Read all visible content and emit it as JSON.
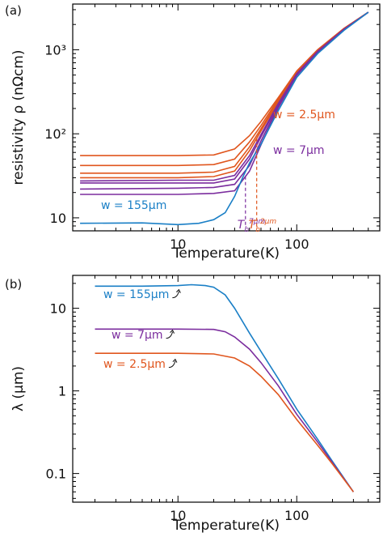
{
  "chart_data": [
    {
      "panel_label": "(a)",
      "type": "line",
      "xscale": "log",
      "yscale": "log",
      "xlim": [
        1.3,
        500
      ],
      "ylim": [
        7,
        3500
      ],
      "xlabel": "Temperature(K)",
      "ylabel": "resistivity ρ (nΩcm)",
      "xticks": [
        {
          "value": 10,
          "label": "10"
        },
        {
          "value": 100,
          "label": "100"
        }
      ],
      "yticks": [
        {
          "value": 10,
          "label": "10"
        },
        {
          "value": 100,
          "label": "10²"
        },
        {
          "value": 1000,
          "label": "10³"
        }
      ],
      "grid": false,
      "colors": {
        "orange": "#e0561e",
        "purple": "#7b2d9e",
        "blue": "#1a7fc6"
      },
      "series": [
        {
          "color": "orange",
          "values": [
            [
              1.5,
              55
            ],
            [
              10,
              55
            ],
            [
              20,
              56
            ],
            [
              30,
              66
            ],
            [
              40,
              95
            ],
            [
              50,
              140
            ],
            [
              70,
              270
            ],
            [
              100,
              560
            ],
            [
              150,
              1000
            ],
            [
              250,
              1800
            ],
            [
              400,
              2800
            ]
          ]
        },
        {
          "color": "orange",
          "values": [
            [
              1.5,
              42
            ],
            [
              10,
              42
            ],
            [
              20,
              43
            ],
            [
              30,
              50
            ],
            [
              40,
              80
            ],
            [
              50,
              125
            ],
            [
              70,
              260
            ],
            [
              100,
              550
            ],
            [
              150,
              990
            ],
            [
              250,
              1790
            ],
            [
              400,
              2800
            ]
          ]
        },
        {
          "color": "orange",
          "values": [
            [
              1.5,
              34
            ],
            [
              10,
              34
            ],
            [
              20,
              35
            ],
            [
              30,
              41
            ],
            [
              40,
              70
            ],
            [
              50,
              115
            ],
            [
              70,
              250
            ],
            [
              100,
              540
            ],
            [
              150,
              980
            ],
            [
              250,
              1780
            ],
            [
              400,
              2800
            ]
          ]
        },
        {
          "color": "orange",
          "values": [
            [
              1.5,
              30
            ],
            [
              10,
              30
            ],
            [
              20,
              31
            ],
            [
              30,
              36
            ],
            [
              40,
              63
            ],
            [
              50,
              108
            ],
            [
              70,
              240
            ],
            [
              100,
              530
            ],
            [
              150,
              970
            ],
            [
              250,
              1770
            ],
            [
              400,
              2800
            ]
          ]
        },
        {
          "color": "purple",
          "values": [
            [
              1.5,
              27.5
            ],
            [
              10,
              28
            ],
            [
              20,
              28
            ],
            [
              30,
              32
            ],
            [
              40,
              55
            ],
            [
              50,
              98
            ],
            [
              70,
              230
            ],
            [
              100,
              520
            ],
            [
              150,
              960
            ],
            [
              250,
              1760
            ],
            [
              400,
              2800
            ]
          ]
        },
        {
          "color": "purple",
          "values": [
            [
              1.5,
              26
            ],
            [
              10,
              26
            ],
            [
              20,
              26
            ],
            [
              30,
              29
            ],
            [
              40,
              50
            ],
            [
              50,
              92
            ],
            [
              70,
              224
            ],
            [
              100,
              515
            ],
            [
              150,
              955
            ],
            [
              250,
              1755
            ],
            [
              400,
              2800
            ]
          ]
        },
        {
          "color": "purple",
          "values": [
            [
              1.5,
              22
            ],
            [
              10,
              22.5
            ],
            [
              20,
              23
            ],
            [
              30,
              25
            ],
            [
              40,
              42
            ],
            [
              50,
              82
            ],
            [
              70,
              215
            ],
            [
              100,
              505
            ],
            [
              150,
              945
            ],
            [
              250,
              1745
            ],
            [
              400,
              2800
            ]
          ]
        },
        {
          "color": "purple",
          "values": [
            [
              1.5,
              19
            ],
            [
              10,
              19
            ],
            [
              20,
              19.5
            ],
            [
              30,
              21
            ],
            [
              40,
              36
            ],
            [
              50,
              74
            ],
            [
              70,
              205
            ],
            [
              100,
              495
            ],
            [
              150,
              935
            ],
            [
              250,
              1735
            ],
            [
              400,
              2800
            ]
          ]
        },
        {
          "color": "blue",
          "values": [
            [
              1.5,
              8.6
            ],
            [
              5,
              8.7
            ],
            [
              10,
              8.3
            ],
            [
              15,
              8.6
            ],
            [
              20,
              9.5
            ],
            [
              25,
              11.5
            ],
            [
              30,
              18
            ],
            [
              35,
              30
            ],
            [
              40,
              45
            ],
            [
              50,
              75
            ],
            [
              70,
              190
            ],
            [
              100,
              470
            ],
            [
              150,
              900
            ],
            [
              250,
              1700
            ],
            [
              400,
              2800
            ]
          ]
        }
      ],
      "annotations": [
        {
          "text": "w = 2.5μm",
          "color": "orange"
        },
        {
          "text": "w = 7μm",
          "color": "purple"
        },
        {
          "text": "w = 155μm",
          "color": "blue"
        }
      ],
      "markers": [
        {
          "x": 37,
          "main": "T",
          "sub": "b",
          "sup": "7μm",
          "color": "purple"
        },
        {
          "x": 46,
          "main": "T",
          "sub": "b",
          "sup": "2μm",
          "color": "orange"
        }
      ]
    },
    {
      "panel_label": "(b)",
      "type": "line",
      "xscale": "log",
      "yscale": "log",
      "xlim": [
        1.3,
        500
      ],
      "ylim": [
        0.045,
        25
      ],
      "xlabel": "Temperature(K)",
      "ylabel": "λ (μm)",
      "xticks": [
        {
          "value": 10,
          "label": "10"
        },
        {
          "value": 100,
          "label": "100"
        }
      ],
      "yticks": [
        {
          "value": 0.1,
          "label": "0.1"
        },
        {
          "value": 1,
          "label": "1"
        },
        {
          "value": 10,
          "label": "10"
        }
      ],
      "grid": false,
      "series": [
        {
          "color": "blue",
          "values": [
            [
              2,
              18.5
            ],
            [
              5,
              18.5
            ],
            [
              10,
              18.8
            ],
            [
              13,
              19.3
            ],
            [
              17,
              18.8
            ],
            [
              20,
              18
            ],
            [
              25,
              14.5
            ],
            [
              30,
              10
            ],
            [
              40,
              5
            ],
            [
              50,
              3
            ],
            [
              70,
              1.4
            ],
            [
              100,
              0.6
            ],
            [
              150,
              0.26
            ],
            [
              200,
              0.14
            ],
            [
              300,
              0.06
            ]
          ]
        },
        {
          "color": "purple",
          "values": [
            [
              2,
              5.6
            ],
            [
              10,
              5.6
            ],
            [
              20,
              5.55
            ],
            [
              25,
              5.2
            ],
            [
              30,
              4.5
            ],
            [
              40,
              3.2
            ],
            [
              50,
              2.2
            ],
            [
              70,
              1.15
            ],
            [
              100,
              0.52
            ],
            [
              150,
              0.24
            ],
            [
              200,
              0.135
            ],
            [
              300,
              0.06
            ]
          ]
        },
        {
          "color": "orange",
          "values": [
            [
              2,
              2.85
            ],
            [
              10,
              2.85
            ],
            [
              20,
              2.8
            ],
            [
              30,
              2.5
            ],
            [
              40,
              2.0
            ],
            [
              50,
              1.5
            ],
            [
              70,
              0.9
            ],
            [
              100,
              0.45
            ],
            [
              150,
              0.22
            ],
            [
              200,
              0.13
            ],
            [
              300,
              0.06
            ]
          ]
        }
      ],
      "annotations": [
        {
          "text": "w = 155μm",
          "color": "blue"
        },
        {
          "text": "w = 7μm",
          "color": "purple"
        },
        {
          "text": "w = 2.5μm",
          "color": "orange"
        }
      ]
    }
  ]
}
